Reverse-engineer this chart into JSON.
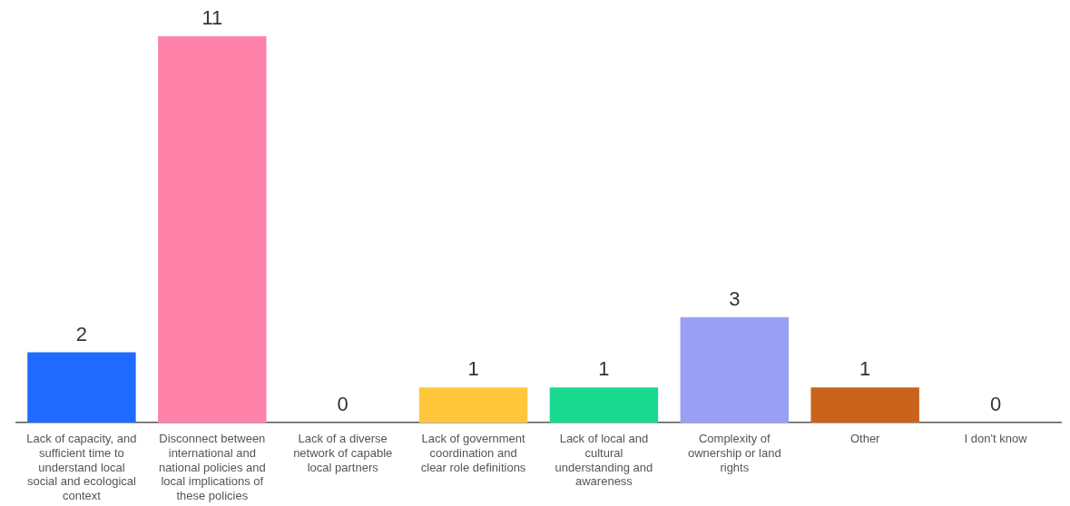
{
  "chart_data": {
    "type": "bar",
    "categories": [
      "Lack of capacity, and sufficient time to understand local social and ecological context",
      "Disconnect between international and national policies and local implications of these policies",
      "Lack of a diverse network of capable local partners",
      "Lack of government coordination and clear role definitions",
      "Lack of local and cultural understanding and awareness",
      "Complexity of ownership or land rights",
      "Other",
      "I don't know"
    ],
    "values": [
      2,
      11,
      0,
      1,
      1,
      3,
      1,
      0
    ],
    "colors": [
      "#1f6bff",
      "#ff82ab",
      "#9e9e9e",
      "#ffc63b",
      "#19d88f",
      "#9a9ef5",
      "#c9631b",
      "#9e9e9e"
    ],
    "data_labels": true
  }
}
